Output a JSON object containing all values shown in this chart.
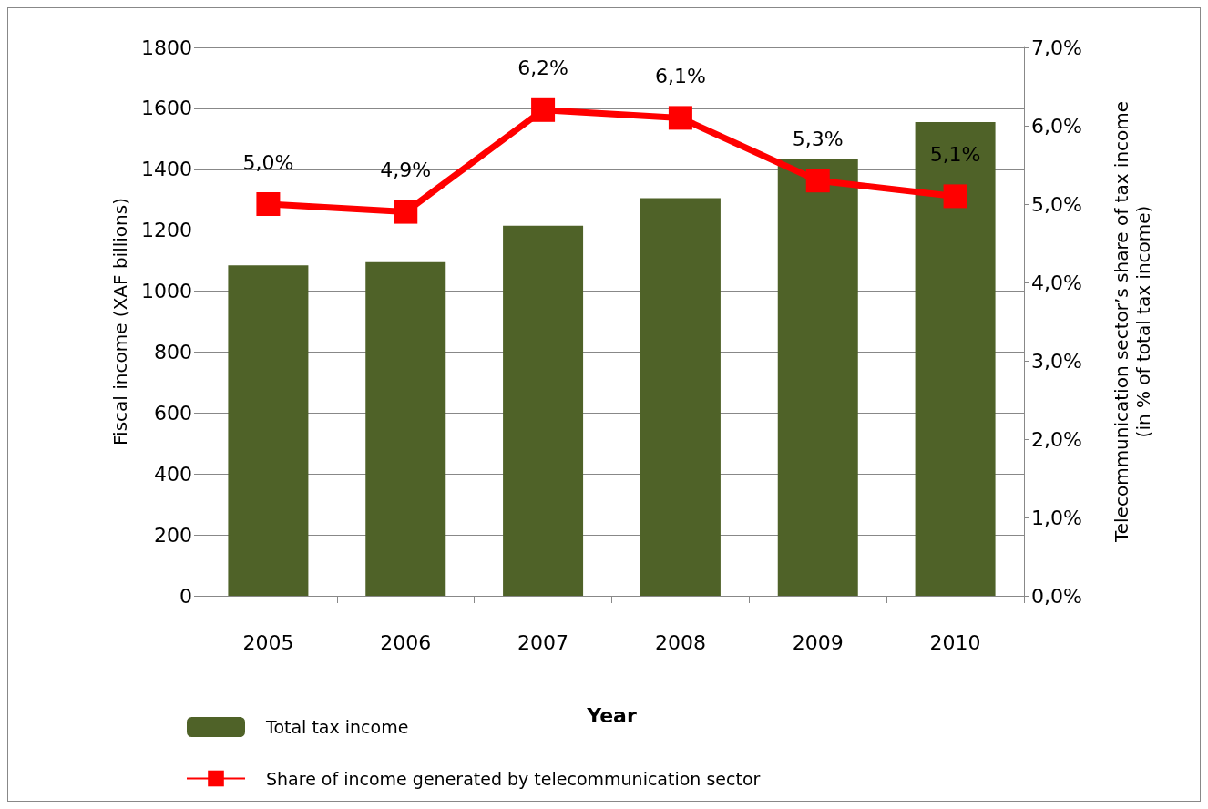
{
  "chart_data": {
    "type": "bar",
    "xlabel": "Year",
    "ylabel": "Fiscal income (XAF billions)",
    "y2label": "Telecommunication sector’s share of tax income\n(in % of total tax income)",
    "categories": [
      "2005",
      "2006",
      "2007",
      "2008",
      "2009",
      "2010"
    ],
    "series": [
      {
        "name": "Total tax income",
        "color": "#4f6228",
        "values": [
          1085,
          1095,
          1215,
          1305,
          1435,
          1555
        ]
      },
      {
        "name": "Share of income generated by telecommunication sector",
        "type": "line",
        "axis": "y2",
        "color": "#ff0000",
        "marker": "square",
        "values": [
          5.0,
          4.9,
          6.2,
          6.1,
          5.3,
          5.1
        ],
        "value_labels": [
          "5,0%",
          "4,9%",
          "6,2%",
          "6,1%",
          "5,3%",
          "5,1%"
        ]
      }
    ],
    "ylim": [
      0,
      1800
    ],
    "yticks": [
      0,
      200,
      400,
      600,
      800,
      1000,
      1200,
      1400,
      1600,
      1800
    ],
    "y2lim": [
      0,
      7
    ],
    "y2ticks": [
      {
        "value": 0,
        "label": "0,0%"
      },
      {
        "value": 1,
        "label": "1,0%"
      },
      {
        "value": 2,
        "label": "2,0%"
      },
      {
        "value": 3,
        "label": "3,0%"
      },
      {
        "value": 4,
        "label": "4,0%"
      },
      {
        "value": 5,
        "label": "5,0%"
      },
      {
        "value": 6,
        "label": "6,0%"
      },
      {
        "value": 7,
        "label": "7,0%"
      }
    ],
    "grid": "y",
    "legend": "bottom"
  }
}
